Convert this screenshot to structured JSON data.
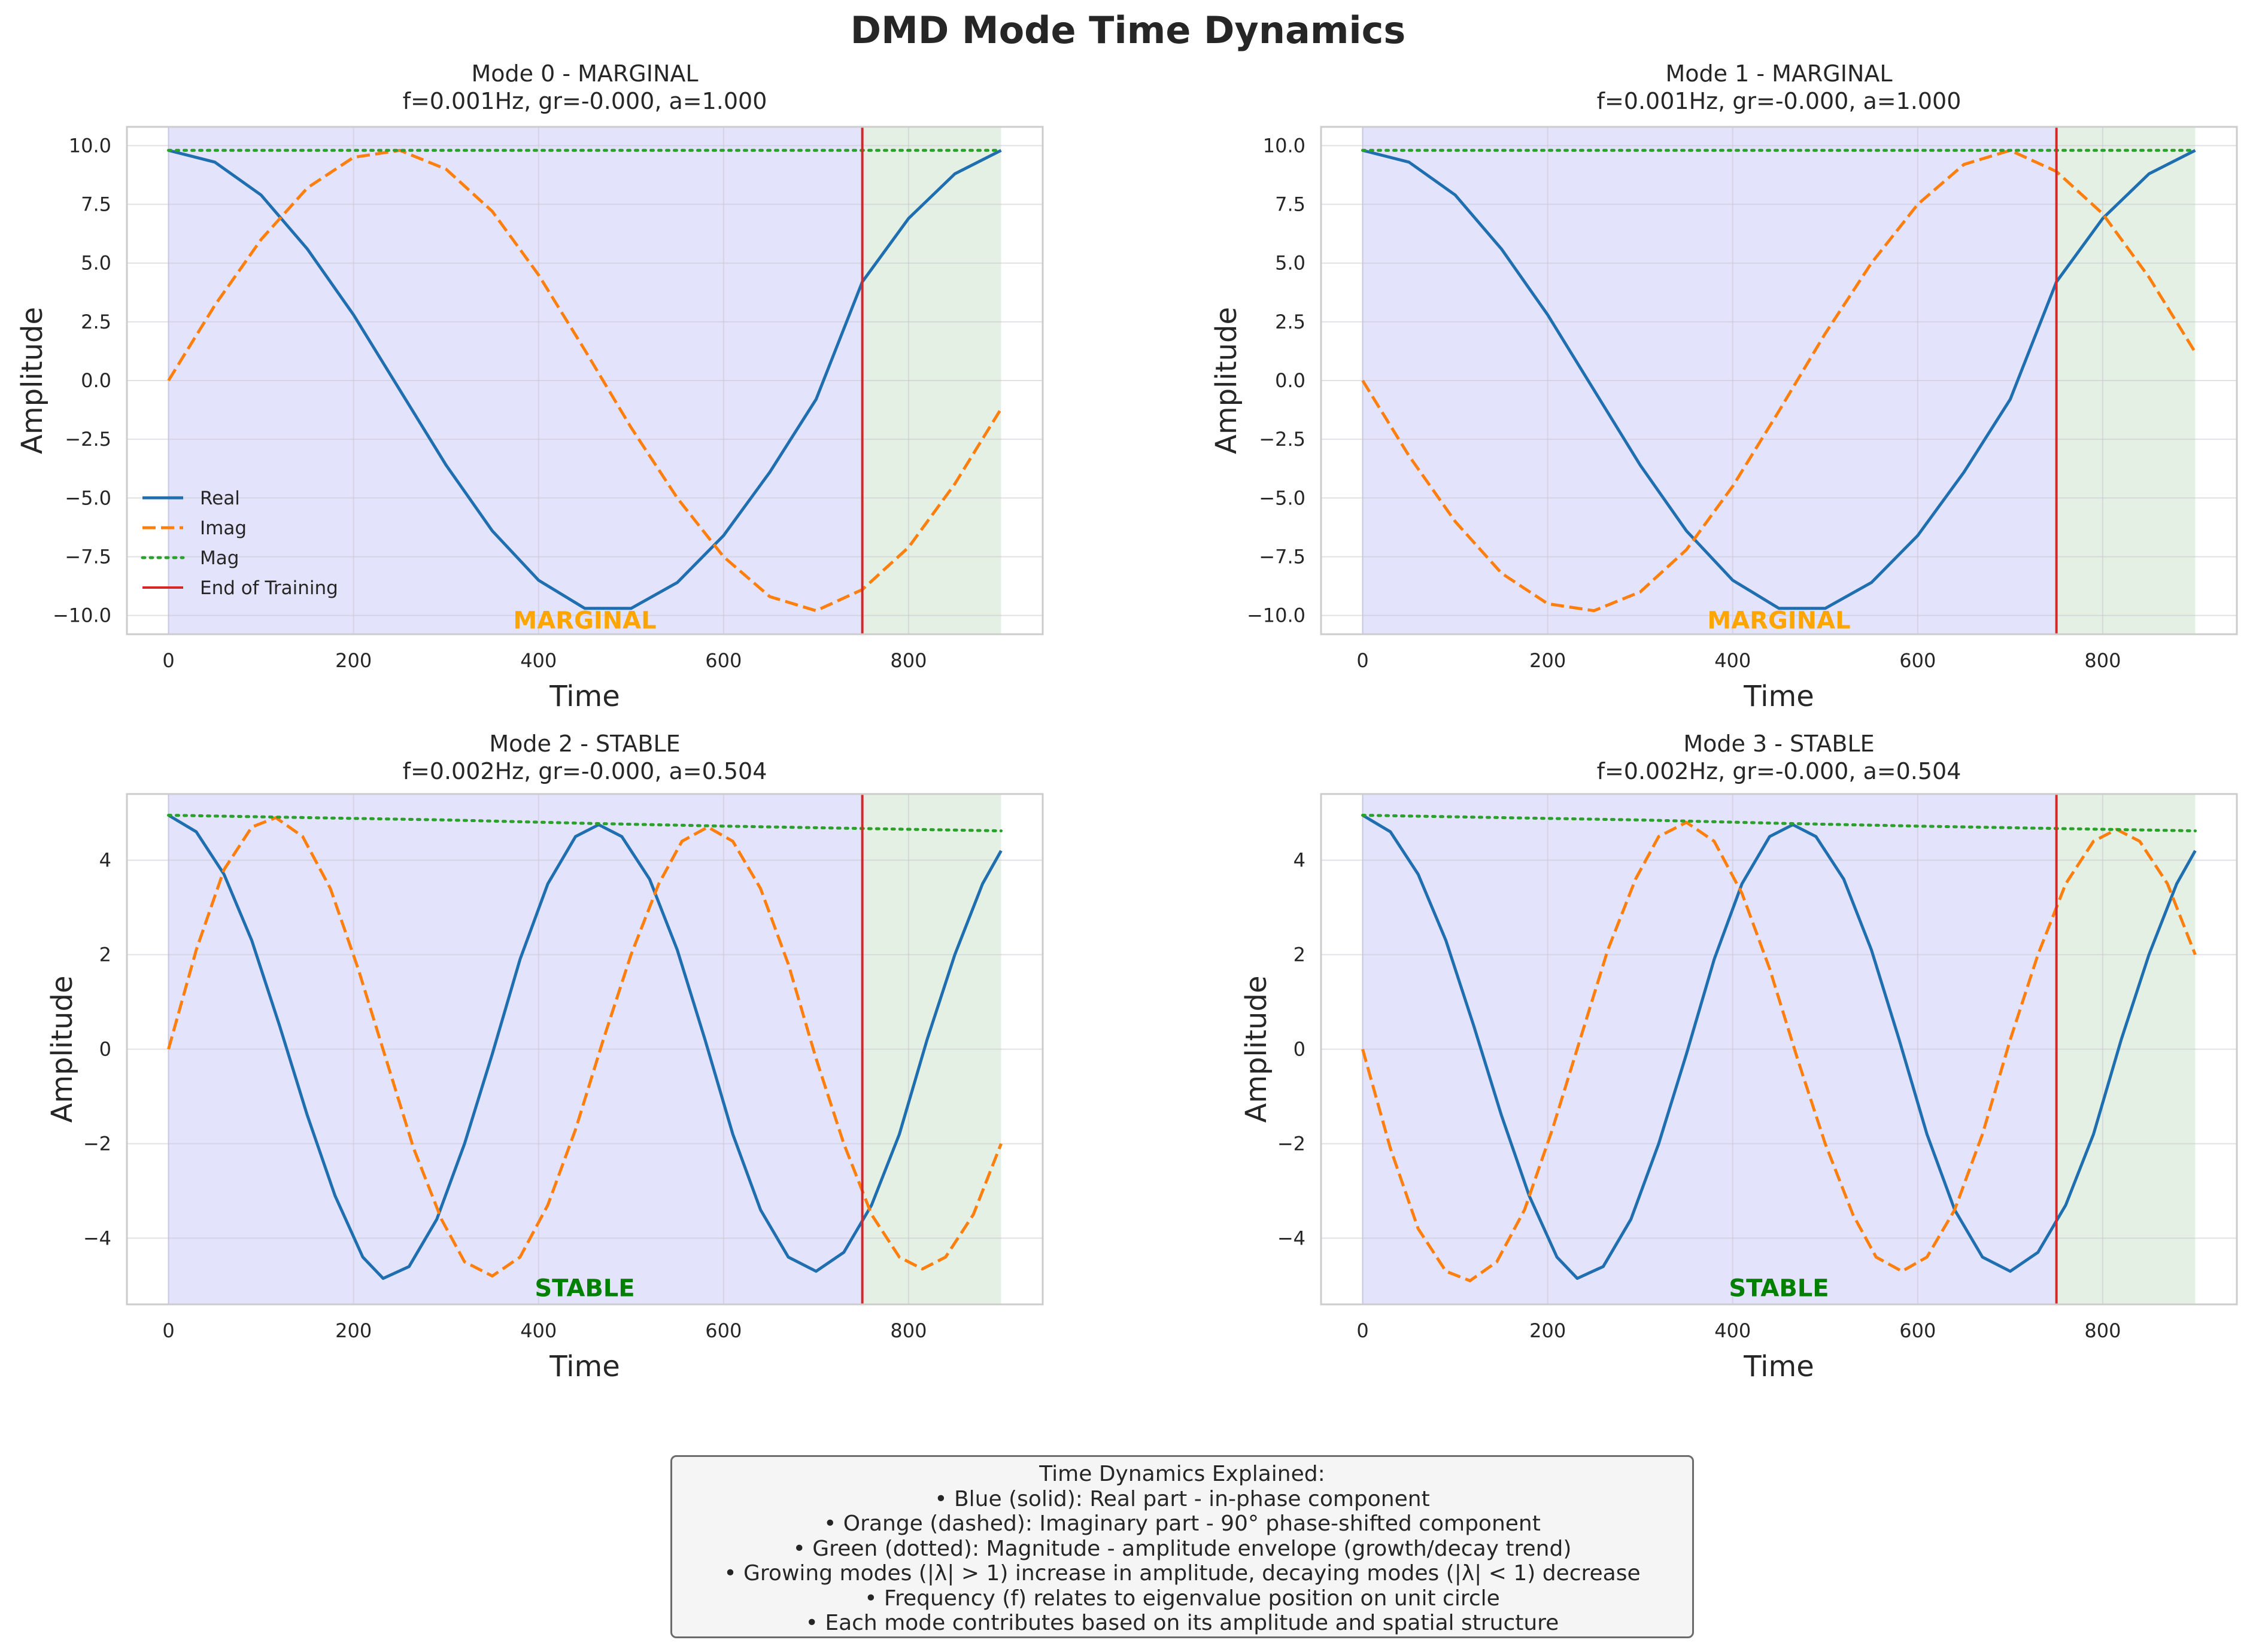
{
  "figure": {
    "suptitle": "DMD Mode Time Dynamics"
  },
  "colors": {
    "real": "#1f6fb0",
    "imag": "#ff7f0e",
    "mag": "#2ca02c",
    "end_training": "#d62728",
    "train_region": "#e3e3fb",
    "test_region": "#e3f0e3",
    "marginal_label": "#ffa500",
    "stable_label": "#008000"
  },
  "chart_data": [
    {
      "type": "line",
      "title": "Mode 0 - MARGINAL",
      "subtitle": "f=0.001Hz, gr=-0.000, a=1.000",
      "xlabel": "Time",
      "ylabel": "Amplitude",
      "xlim": [
        -45,
        945
      ],
      "ylim": [
        -10.8,
        10.8
      ],
      "xticks": [
        0,
        200,
        400,
        600,
        800
      ],
      "yticks": [
        10.0,
        7.5,
        5.0,
        2.5,
        0.0,
        -2.5,
        -5.0,
        -7.5,
        -10.0
      ],
      "ytick_labels": [
        "10.0",
        "7.5",
        "5.0",
        "2.5",
        "0.0",
        "−2.5",
        "−5.0",
        "−7.5",
        "−10.0"
      ],
      "grid": true,
      "legend": {
        "location": "lower-left",
        "entries": [
          "Real",
          "Imag",
          "Mag",
          "End of Training"
        ]
      },
      "regions": [
        {
          "x": [
            0,
            750
          ],
          "color": "train_region"
        },
        {
          "x": [
            750,
            900
          ],
          "color": "test_region"
        }
      ],
      "vline": {
        "x": 750,
        "name": "End of Training"
      },
      "annotation": {
        "text": "MARGINAL",
        "x": 450,
        "y": -10.2,
        "color": "marginal_label"
      },
      "series": [
        {
          "name": "Real",
          "style": "solid",
          "color": "real",
          "x": [
            0,
            50,
            100,
            150,
            200,
            250,
            300,
            350,
            400,
            450,
            500,
            550,
            600,
            650,
            700,
            750,
            800,
            850,
            900
          ],
          "y": [
            9.8,
            9.3,
            7.9,
            5.6,
            2.8,
            -0.4,
            -3.6,
            -6.4,
            -8.5,
            -9.7,
            -9.7,
            -8.6,
            -6.6,
            -3.9,
            -0.8,
            4.2,
            6.9,
            8.8,
            9.8
          ]
        },
        {
          "name": "Imag",
          "style": "dashed",
          "color": "imag",
          "x": [
            0,
            50,
            100,
            150,
            200,
            250,
            300,
            350,
            400,
            450,
            500,
            550,
            600,
            650,
            700,
            750,
            800,
            850,
            900
          ],
          "y": [
            0.0,
            3.2,
            6.0,
            8.2,
            9.5,
            9.8,
            9.0,
            7.2,
            4.5,
            1.3,
            -2.0,
            -5.0,
            -7.5,
            -9.2,
            -9.8,
            -8.9,
            -7.1,
            -4.4,
            -1.2
          ]
        },
        {
          "name": "Mag",
          "style": "dotted",
          "color": "mag",
          "x": [
            0,
            900
          ],
          "y": [
            9.8,
            9.8
          ]
        }
      ]
    },
    {
      "type": "line",
      "title": "Mode 1 - MARGINAL",
      "subtitle": "f=0.001Hz, gr=-0.000, a=1.000",
      "xlabel": "Time",
      "ylabel": "Amplitude",
      "xlim": [
        -45,
        945
      ],
      "ylim": [
        -10.8,
        10.8
      ],
      "xticks": [
        0,
        200,
        400,
        600,
        800
      ],
      "yticks": [
        10.0,
        7.5,
        5.0,
        2.5,
        0.0,
        -2.5,
        -5.0,
        -7.5,
        -10.0
      ],
      "ytick_labels": [
        "10.0",
        "7.5",
        "5.0",
        "2.5",
        "0.0",
        "−2.5",
        "−5.0",
        "−7.5",
        "−10.0"
      ],
      "grid": true,
      "regions": [
        {
          "x": [
            0,
            750
          ],
          "color": "train_region"
        },
        {
          "x": [
            750,
            900
          ],
          "color": "test_region"
        }
      ],
      "vline": {
        "x": 750,
        "name": "End of Training"
      },
      "annotation": {
        "text": "MARGINAL",
        "x": 450,
        "y": -10.2,
        "color": "marginal_label"
      },
      "series": [
        {
          "name": "Real",
          "style": "solid",
          "color": "real",
          "x": [
            0,
            50,
            100,
            150,
            200,
            250,
            300,
            350,
            400,
            450,
            500,
            550,
            600,
            650,
            700,
            750,
            800,
            850,
            900
          ],
          "y": [
            9.8,
            9.3,
            7.9,
            5.6,
            2.8,
            -0.4,
            -3.6,
            -6.4,
            -8.5,
            -9.7,
            -9.7,
            -8.6,
            -6.6,
            -3.9,
            -0.8,
            4.2,
            6.9,
            8.8,
            9.8
          ]
        },
        {
          "name": "Imag",
          "style": "dashed",
          "color": "imag",
          "x": [
            0,
            50,
            100,
            150,
            200,
            250,
            300,
            350,
            400,
            450,
            500,
            550,
            600,
            650,
            700,
            750,
            800,
            850,
            900
          ],
          "y": [
            0.0,
            -3.2,
            -6.0,
            -8.2,
            -9.5,
            -9.8,
            -9.0,
            -7.2,
            -4.5,
            -1.3,
            2.0,
            5.0,
            7.5,
            9.2,
            9.8,
            8.9,
            7.1,
            4.4,
            1.2
          ]
        },
        {
          "name": "Mag",
          "style": "dotted",
          "color": "mag",
          "x": [
            0,
            900
          ],
          "y": [
            9.8,
            9.8
          ]
        }
      ]
    },
    {
      "type": "line",
      "title": "Mode 2 - STABLE",
      "subtitle": "f=0.002Hz, gr=-0.000, a=0.504",
      "xlabel": "Time",
      "ylabel": "Amplitude",
      "xlim": [
        -45,
        945
      ],
      "ylim": [
        -5.4,
        5.4
      ],
      "xticks": [
        0,
        200,
        400,
        600,
        800
      ],
      "yticks": [
        4,
        2,
        0,
        -2,
        -4
      ],
      "ytick_labels": [
        "4",
        "2",
        "0",
        "−2",
        "−4"
      ],
      "grid": true,
      "regions": [
        {
          "x": [
            0,
            750
          ],
          "color": "train_region"
        },
        {
          "x": [
            750,
            900
          ],
          "color": "test_region"
        }
      ],
      "vline": {
        "x": 750,
        "name": "End of Training"
      },
      "annotation": {
        "text": "STABLE",
        "x": 450,
        "y": -5.05,
        "color": "stable_label"
      },
      "series": [
        {
          "name": "Real",
          "style": "solid",
          "color": "real",
          "x": [
            0,
            30,
            60,
            90,
            120,
            150,
            180,
            210,
            232,
            260,
            290,
            320,
            350,
            380,
            410,
            440,
            465,
            490,
            520,
            550,
            580,
            610,
            640,
            670,
            700,
            730,
            760,
            790,
            820,
            850,
            880,
            900
          ],
          "y": [
            4.95,
            4.6,
            3.7,
            2.3,
            0.5,
            -1.4,
            -3.1,
            -4.4,
            -4.85,
            -4.6,
            -3.6,
            -2.0,
            -0.1,
            1.9,
            3.5,
            4.5,
            4.75,
            4.5,
            3.6,
            2.1,
            0.2,
            -1.8,
            -3.4,
            -4.4,
            -4.7,
            -4.3,
            -3.3,
            -1.8,
            0.2,
            2.0,
            3.5,
            4.2
          ]
        },
        {
          "name": "Imag",
          "style": "dashed",
          "color": "imag",
          "x": [
            0,
            30,
            60,
            90,
            116,
            145,
            175,
            205,
            235,
            265,
            295,
            320,
            350,
            380,
            410,
            440,
            470,
            500,
            530,
            555,
            583,
            610,
            640,
            670,
            700,
            730,
            760,
            790,
            815,
            840,
            870,
            900
          ],
          "y": [
            0.0,
            2.1,
            3.8,
            4.7,
            4.9,
            4.5,
            3.4,
            1.7,
            -0.2,
            -2.1,
            -3.6,
            -4.5,
            -4.8,
            -4.4,
            -3.3,
            -1.7,
            0.2,
            2.0,
            3.5,
            4.4,
            4.7,
            4.4,
            3.4,
            1.8,
            -0.2,
            -2.0,
            -3.5,
            -4.4,
            -4.65,
            -4.4,
            -3.5,
            -2.0
          ]
        },
        {
          "name": "Mag",
          "style": "dotted",
          "color": "mag",
          "x": [
            0,
            150,
            300,
            450,
            600,
            750,
            900
          ],
          "y": [
            4.95,
            4.9,
            4.85,
            4.78,
            4.72,
            4.67,
            4.62
          ]
        }
      ]
    },
    {
      "type": "line",
      "title": "Mode 3 - STABLE",
      "subtitle": "f=0.002Hz, gr=-0.000, a=0.504",
      "xlabel": "Time",
      "ylabel": "Amplitude",
      "xlim": [
        -45,
        945
      ],
      "ylim": [
        -5.4,
        5.4
      ],
      "xticks": [
        0,
        200,
        400,
        600,
        800
      ],
      "yticks": [
        4,
        2,
        0,
        -2,
        -4
      ],
      "ytick_labels": [
        "4",
        "2",
        "0",
        "−2",
        "−4"
      ],
      "grid": true,
      "regions": [
        {
          "x": [
            0,
            750
          ],
          "color": "train_region"
        },
        {
          "x": [
            750,
            900
          ],
          "color": "test_region"
        }
      ],
      "vline": {
        "x": 750,
        "name": "End of Training"
      },
      "annotation": {
        "text": "STABLE",
        "x": 450,
        "y": -5.05,
        "color": "stable_label"
      },
      "series": [
        {
          "name": "Real",
          "style": "solid",
          "color": "real",
          "x": [
            0,
            30,
            60,
            90,
            120,
            150,
            180,
            210,
            232,
            260,
            290,
            320,
            350,
            380,
            410,
            440,
            465,
            490,
            520,
            550,
            580,
            610,
            640,
            670,
            700,
            730,
            760,
            790,
            820,
            850,
            880,
            900
          ],
          "y": [
            4.95,
            4.6,
            3.7,
            2.3,
            0.5,
            -1.4,
            -3.1,
            -4.4,
            -4.85,
            -4.6,
            -3.6,
            -2.0,
            -0.1,
            1.9,
            3.5,
            4.5,
            4.75,
            4.5,
            3.6,
            2.1,
            0.2,
            -1.8,
            -3.4,
            -4.4,
            -4.7,
            -4.3,
            -3.3,
            -1.8,
            0.2,
            2.0,
            3.5,
            4.2
          ]
        },
        {
          "name": "Imag",
          "style": "dashed",
          "color": "imag",
          "x": [
            0,
            30,
            60,
            90,
            116,
            145,
            175,
            205,
            235,
            265,
            295,
            320,
            350,
            380,
            410,
            440,
            470,
            500,
            530,
            555,
            583,
            610,
            640,
            670,
            700,
            730,
            760,
            790,
            815,
            840,
            870,
            900
          ],
          "y": [
            0.0,
            -2.1,
            -3.8,
            -4.7,
            -4.9,
            -4.5,
            -3.4,
            -1.7,
            0.2,
            2.1,
            3.6,
            4.5,
            4.8,
            4.4,
            3.3,
            1.7,
            -0.2,
            -2.0,
            -3.5,
            -4.4,
            -4.7,
            -4.4,
            -3.4,
            -1.8,
            0.2,
            2.0,
            3.5,
            4.4,
            4.65,
            4.4,
            3.5,
            2.0
          ]
        },
        {
          "name": "Mag",
          "style": "dotted",
          "color": "mag",
          "x": [
            0,
            150,
            300,
            450,
            600,
            750,
            900
          ],
          "y": [
            4.95,
            4.9,
            4.85,
            4.78,
            4.72,
            4.67,
            4.62
          ]
        }
      ]
    }
  ],
  "explanation": {
    "title": "Time Dynamics Explained:",
    "lines": [
      "• Blue (solid): Real part - in-phase component",
      "• Orange (dashed): Imaginary part - 90° phase-shifted component",
      "• Green (dotted): Magnitude - amplitude envelope (growth/decay trend)",
      "• Growing modes (|λ| > 1) increase in amplitude, decaying modes (|λ| < 1) decrease",
      "• Frequency (f) relates to eigenvalue position on unit circle",
      "• Each mode contributes based on its amplitude and spatial structure"
    ]
  }
}
